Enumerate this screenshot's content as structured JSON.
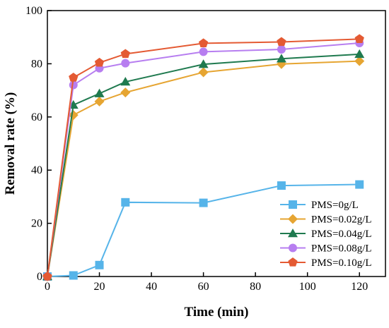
{
  "chart_data": {
    "type": "line",
    "xlabel": "Time (min)",
    "ylabel": "Removal rate (%)",
    "xlim": [
      0,
      130
    ],
    "ylim": [
      0,
      100
    ],
    "xticks": [
      0,
      20,
      40,
      60,
      80,
      100,
      120
    ],
    "yticks": [
      0,
      20,
      40,
      60,
      80,
      100
    ],
    "grid": false,
    "legend_position": "bottom-right",
    "x": [
      0,
      10,
      20,
      30,
      60,
      90,
      120
    ],
    "series": [
      {
        "name": "PMS=0g/L",
        "color": "#56b4e9",
        "marker": "square",
        "values": [
          0,
          0.4,
          4.3,
          27.9,
          27.7,
          34.2,
          34.6
        ]
      },
      {
        "name": "PMS=0.02g/L",
        "color": "#e6a532",
        "marker": "diamond",
        "values": [
          0,
          60.7,
          65.8,
          69.2,
          76.8,
          79.9,
          81.0
        ]
      },
      {
        "name": "PMS=0.04g/L",
        "color": "#1f7a4f",
        "marker": "triangle",
        "values": [
          0,
          64.5,
          68.8,
          73.2,
          79.8,
          81.9,
          83.6
        ]
      },
      {
        "name": "PMS=0.08g/L",
        "color": "#b77ef0",
        "marker": "circle",
        "values": [
          0,
          72.0,
          78.3,
          80.2,
          84.5,
          85.4,
          87.8
        ]
      },
      {
        "name": "PMS=0.10g/L",
        "color": "#e45a33",
        "marker": "pentagon",
        "values": [
          0,
          74.8,
          80.4,
          83.7,
          87.7,
          88.2,
          89.3
        ]
      }
    ]
  }
}
